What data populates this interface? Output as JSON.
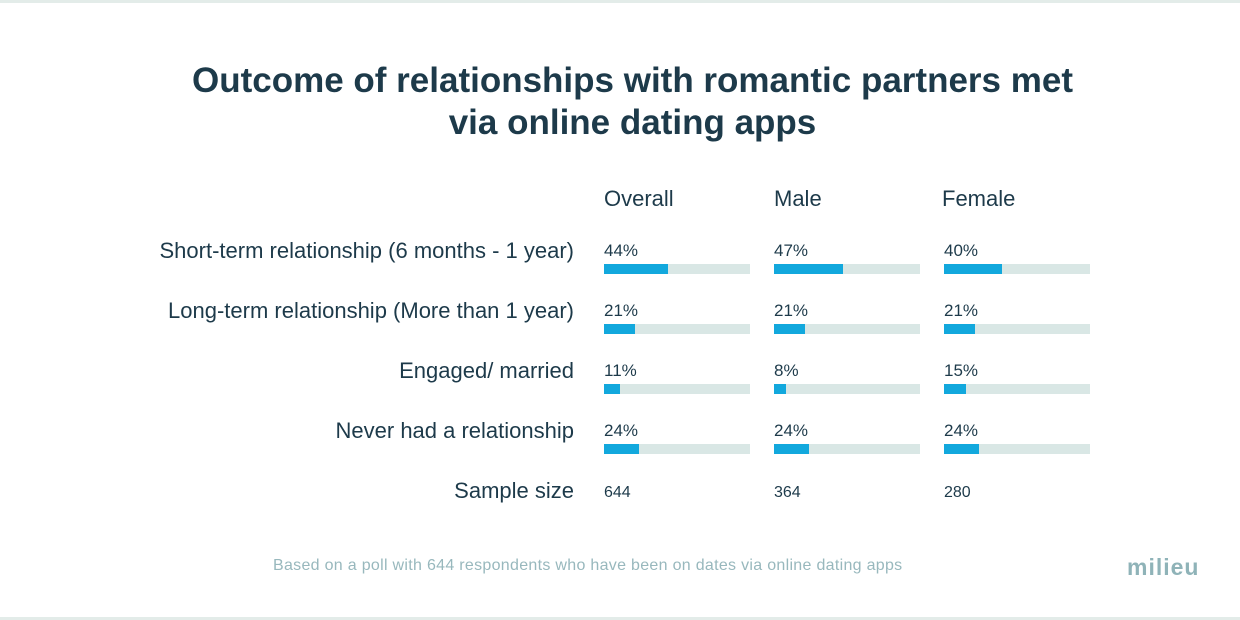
{
  "title_line1": "Outcome of relationships with romantic partners met",
  "title_line2": "via online dating apps",
  "footnote": "Based on a poll with 644 respondents who have been on dates via online dating apps",
  "logo_text": "milieu",
  "colors": {
    "bar_fill": "#12a8dd",
    "bar_track": "#d9e7e5",
    "text_dark": "#1d3a4a",
    "text_muted": "#98b8bd"
  },
  "chart_data": {
    "type": "bar",
    "orientation": "horizontal",
    "title": "Outcome of relationships with romantic partners met via online dating apps",
    "columns": [
      "Overall",
      "Male",
      "Female"
    ],
    "categories": [
      "Short-term relationship (6 months - 1 year)",
      "Long-term relationship (More than 1 year)",
      "Engaged/ married",
      "Never had a relationship"
    ],
    "series": [
      {
        "name": "Overall",
        "values": [
          44,
          21,
          11,
          24
        ],
        "labels": [
          "44%",
          "21%",
          "11%",
          "24%"
        ]
      },
      {
        "name": "Male",
        "values": [
          47,
          21,
          8,
          24
        ],
        "labels": [
          "47%",
          "21%",
          "8%",
          "24%"
        ]
      },
      {
        "name": "Female",
        "values": [
          40,
          21,
          15,
          24
        ],
        "labels": [
          "40%",
          "21%",
          "15%",
          "24%"
        ]
      }
    ],
    "sample_label": "Sample size",
    "sample_sizes": [
      "644",
      "364",
      "280"
    ],
    "xlim": [
      0,
      100
    ],
    "unit": "%"
  }
}
